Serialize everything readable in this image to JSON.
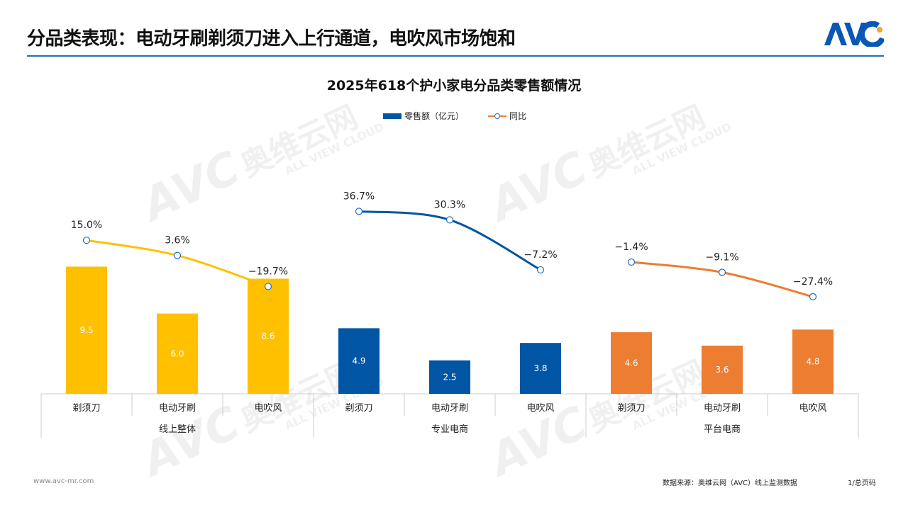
{
  "header": {
    "title": "分品类表现：电动牙刷剃须刀进入上行通道，电吹风市场饱和",
    "logo_text": "AVC"
  },
  "watermark": {
    "mark": "AVC",
    "cn": "奥维云网",
    "en": "ALL VIEW CLOUD"
  },
  "footer": {
    "website": "www.avc-mr.com",
    "source": "数据来源：奥维云网（AVC）线上监测数据",
    "page": "1/总页码"
  },
  "chart_data": {
    "type": "bar+line",
    "title": "2025年618个护小家电分品类零售额情况",
    "legend": [
      "零售额（亿元）",
      "同比"
    ],
    "legend_placement": "top",
    "groups": [
      {
        "name": "线上整体",
        "color": "#FFC000",
        "categories": [
          "剃须刀",
          "电动牙刷",
          "电吹风"
        ],
        "sales": [
          9.5,
          6.0,
          8.6
        ],
        "yoy": [
          15.0,
          3.6,
          -19.7
        ]
      },
      {
        "name": "专业电商",
        "color": "#0055A5",
        "categories": [
          "剃须刀",
          "电动牙刷",
          "电吹风"
        ],
        "sales": [
          4.9,
          2.5,
          3.8
        ],
        "yoy": [
          36.7,
          30.3,
          -7.2
        ]
      },
      {
        "name": "平台电商",
        "color": "#ED7D31",
        "categories": [
          "剃须刀",
          "电动牙刷",
          "电吹风"
        ],
        "sales": [
          4.6,
          3.6,
          4.8
        ],
        "yoy": [
          -1.4,
          -9.1,
          -27.4
        ]
      }
    ],
    "sales_unit": "亿元",
    "yoy_unit": "%",
    "grid": false
  }
}
